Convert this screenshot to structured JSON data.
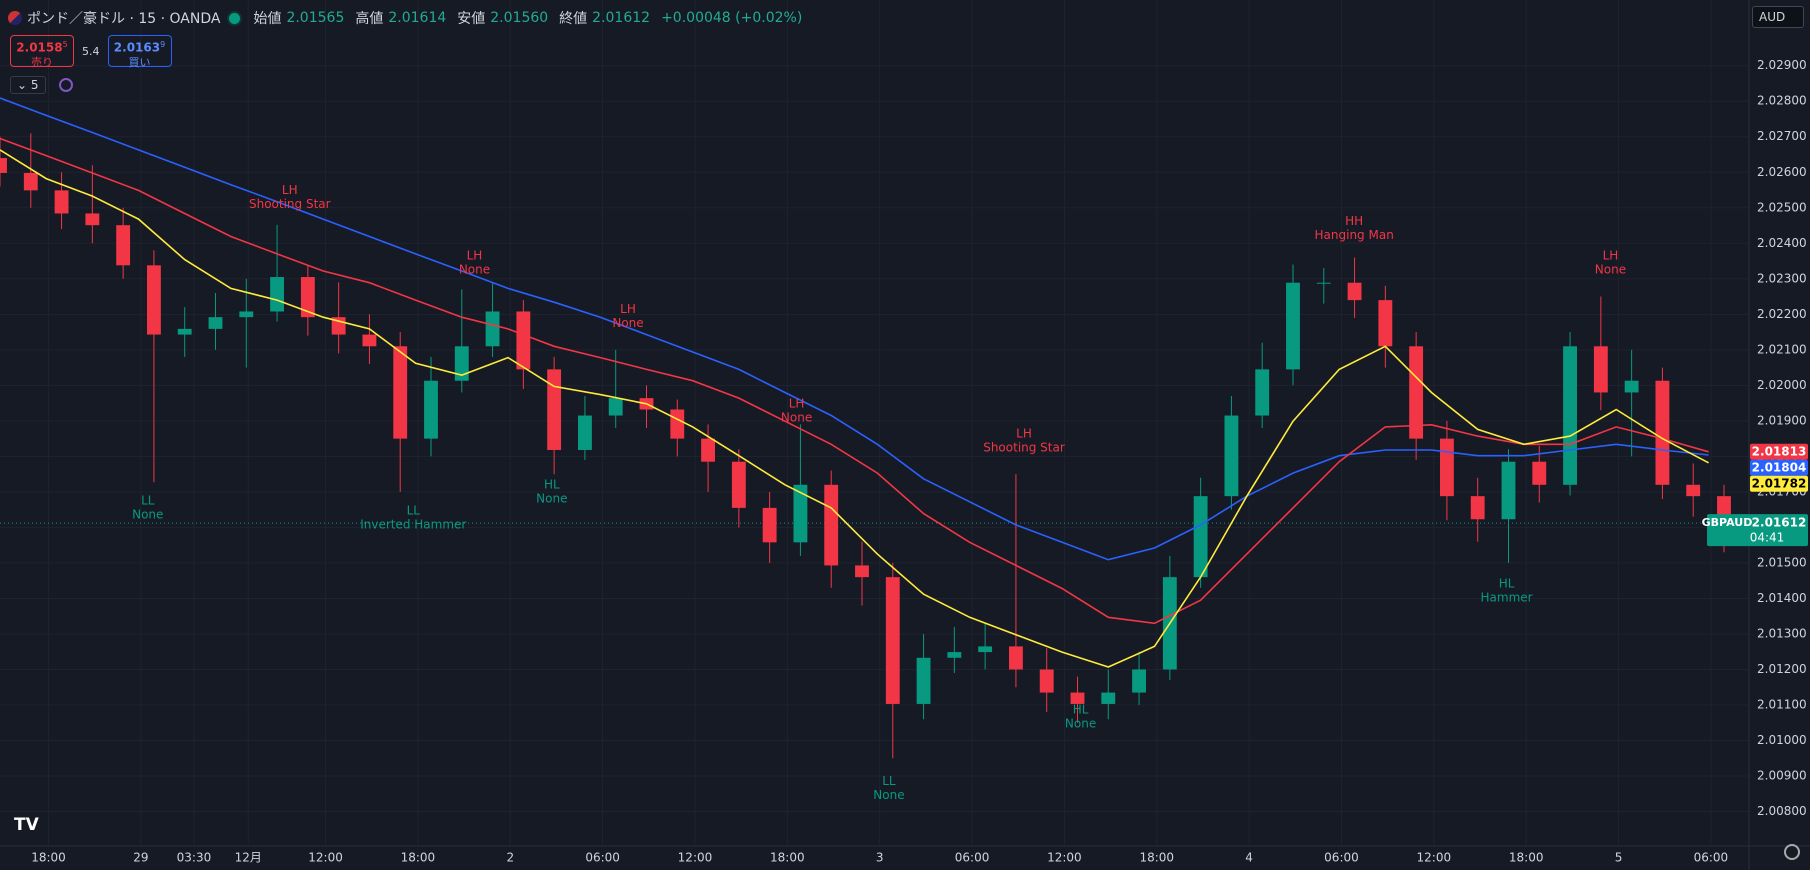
{
  "header": {
    "symbol": "ポンド／豪ドル · 15 · OANDA",
    "open_label": "始値",
    "open": "2.01565",
    "high_label": "高値",
    "high": "2.01614",
    "low_label": "安値",
    "low": "2.01560",
    "close_label": "終値",
    "close": "2.01612",
    "change": "+0.00048 (+0.02%)"
  },
  "trade": {
    "sell_price": "2.0158",
    "sell_sup": "5",
    "sell_label": "売り",
    "spread": "5.4",
    "buy_price": "2.0163",
    "buy_sup": "9",
    "buy_label": "買い"
  },
  "indicator_count": "5",
  "currency": "AUD",
  "chart_data": {
    "type": "candlestick",
    "up_color": "#089981",
    "down_color": "#f23645",
    "x": [
      0,
      8,
      16,
      24,
      32,
      40,
      48,
      56,
      64,
      72,
      80,
      88,
      96,
      104,
      112,
      120,
      128,
      136,
      144,
      152,
      160,
      168,
      176,
      184,
      192,
      200,
      208,
      216,
      224,
      232,
      240,
      248,
      256,
      264,
      272,
      280,
      288,
      296,
      304,
      312,
      320,
      328,
      336,
      344,
      352,
      360,
      368,
      376,
      384,
      392,
      400,
      408,
      416,
      424,
      432,
      440,
      448
    ],
    "open": [
      2.0264,
      2.02598,
      2.02549,
      2.02484,
      2.02451,
      2.02338,
      2.02143,
      2.02159,
      2.02192,
      2.02208,
      2.02305,
      2.02192,
      2.02143,
      2.0211,
      2.0185,
      2.02013,
      2.0211,
      2.02208,
      2.02045,
      2.01818,
      2.01915,
      2.01964,
      2.01932,
      2.0185,
      2.01785,
      2.01655,
      2.01558,
      2.0172,
      2.01493,
      2.0146,
      2.01103,
      2.01233,
      2.01249,
      2.01265,
      2.012,
      2.01135,
      2.01103,
      2.01135,
      2.012,
      2.0146,
      2.01688,
      2.01915,
      2.02045,
      2.02289,
      2.02289,
      2.0224,
      2.0211,
      2.0185,
      2.01688,
      2.01623,
      2.01785,
      2.0172,
      2.0211,
      2.0198,
      2.02013,
      2.0172,
      2.01688
    ],
    "high": [
      2.027,
      2.0271,
      2.026,
      2.0262,
      2.025,
      2.0238,
      2.0222,
      2.0226,
      2.023,
      2.02452,
      2.0234,
      2.0229,
      2.022,
      2.0215,
      2.0208,
      2.0227,
      2.0229,
      2.0224,
      2.0208,
      2.0197,
      2.021,
      2.02,
      2.0196,
      2.0189,
      2.0182,
      2.017,
      2.0189,
      2.0176,
      2.0156,
      2.015,
      2.013,
      2.0132,
      2.0133,
      2.0175,
      2.0126,
      2.0118,
      2.012,
      2.0125,
      2.0152,
      2.0174,
      2.0197,
      2.0212,
      2.0234,
      2.0233,
      2.0236,
      2.0228,
      2.0215,
      2.019,
      2.0174,
      2.0182,
      2.0183,
      2.0215,
      2.0225,
      2.021,
      2.0205,
      2.0178,
      2.0172
    ],
    "low": [
      2.0256,
      2.025,
      2.0244,
      2.024,
      2.023,
      2.01727,
      2.0208,
      2.021,
      2.0205,
      2.0218,
      2.0214,
      2.0209,
      2.0206,
      2.017,
      2.018,
      2.0198,
      2.0208,
      2.0199,
      2.0175,
      2.0179,
      2.0188,
      2.0188,
      2.018,
      2.017,
      2.016,
      2.015,
      2.0152,
      2.0143,
      2.0138,
      2.0095,
      2.0106,
      2.0119,
      2.012,
      2.0115,
      2.0108,
      2.0105,
      2.0106,
      2.011,
      2.0117,
      2.0143,
      2.0165,
      2.0188,
      2.02,
      2.0223,
      2.0219,
      2.0205,
      2.0179,
      2.0162,
      2.0156,
      2.015,
      2.0167,
      2.0169,
      2.0193,
      2.018,
      2.0168,
      2.0163,
      2.0153
    ],
    "close": [
      2.02598,
      2.02549,
      2.02484,
      2.02451,
      2.02338,
      2.02143,
      2.02159,
      2.02192,
      2.02208,
      2.02305,
      2.02192,
      2.02143,
      2.0211,
      2.0185,
      2.02013,
      2.0211,
      2.02208,
      2.02045,
      2.01818,
      2.01915,
      2.01964,
      2.01932,
      2.0185,
      2.01785,
      2.01655,
      2.01558,
      2.0172,
      2.01493,
      2.0146,
      2.01103,
      2.01233,
      2.01249,
      2.01265,
      2.012,
      2.01135,
      2.01103,
      2.01135,
      2.012,
      2.0146,
      2.01688,
      2.01915,
      2.02045,
      2.02289,
      2.02289,
      2.0224,
      2.0211,
      2.0185,
      2.01688,
      2.01623,
      2.01785,
      2.0172,
      2.0211,
      2.0198,
      2.02013,
      2.0172,
      2.01688,
      2.01612
    ],
    "line_x": [
      0,
      12,
      24,
      36,
      48,
      60,
      72,
      84,
      96,
      108,
      120,
      132,
      144,
      156,
      168,
      180,
      192,
      204,
      216,
      228,
      240,
      252,
      264,
      276,
      288,
      300,
      312,
      324,
      336,
      348,
      360,
      372,
      384,
      396,
      408,
      420,
      432,
      444
    ],
    "lines": [
      {
        "color": "#2962ff",
        "values": [
          2.02809,
          2.0276,
          2.02712,
          2.02663,
          2.02614,
          2.02565,
          2.02517,
          2.02468,
          2.02419,
          2.0237,
          2.02322,
          2.02273,
          2.02234,
          2.02192,
          2.02143,
          2.02094,
          2.02045,
          2.0198,
          2.01915,
          2.01834,
          2.01737,
          2.01672,
          2.01607,
          2.01558,
          2.01509,
          2.01542,
          2.01607,
          2.01688,
          2.01753,
          2.01802,
          2.01818,
          2.01818,
          2.01802,
          2.01802,
          2.01818,
          2.01834,
          2.01818,
          2.01804
        ]
      },
      {
        "color": "#f23645",
        "values": [
          2.02695,
          2.02647,
          2.02598,
          2.02549,
          2.02484,
          2.02419,
          2.0237,
          2.02322,
          2.02289,
          2.0224,
          2.02192,
          2.02159,
          2.0211,
          2.02078,
          2.02045,
          2.02013,
          2.01964,
          2.01899,
          2.01834,
          2.01753,
          2.01639,
          2.01558,
          2.01493,
          2.01428,
          2.01347,
          2.0133,
          2.01395,
          2.01525,
          2.01655,
          2.01785,
          2.01883,
          2.01889,
          2.01857,
          2.01834,
          2.01834,
          2.01883,
          2.0185,
          2.01813
        ]
      },
      {
        "color": "#ffeb3b",
        "values": [
          2.02663,
          2.02582,
          2.02533,
          2.02468,
          2.02354,
          2.02273,
          2.0224,
          2.02192,
          2.02159,
          2.02062,
          2.02029,
          2.02078,
          2.01997,
          2.01974,
          2.01948,
          2.01883,
          2.01802,
          2.0172,
          2.01655,
          2.01525,
          2.01412,
          2.01347,
          2.01298,
          2.01249,
          2.01207,
          2.01265,
          2.0146,
          2.01688,
          2.01899,
          2.02045,
          2.0211,
          2.0198,
          2.01876,
          2.01834,
          2.01857,
          2.01932,
          2.0185,
          2.01782
        ]
      }
    ],
    "xlim": [
      0,
      454.5
    ],
    "ylim": [
      2.00703,
      2.03085
    ],
    "grid": true,
    "xticks": [
      {
        "value": 12.6,
        "label": "18:00"
      },
      {
        "value": 36.6,
        "label": "29"
      },
      {
        "value": 50.4,
        "label": "03:30"
      },
      {
        "value": 64.5,
        "label": "12月"
      },
      {
        "value": 84.6,
        "label": "12:00"
      },
      {
        "value": 108.6,
        "label": "18:00"
      },
      {
        "value": 132.6,
        "label": "2"
      },
      {
        "value": 156.6,
        "label": "06:00"
      },
      {
        "value": 180.6,
        "label": "12:00"
      },
      {
        "value": 204.6,
        "label": "18:00"
      },
      {
        "value": 228.6,
        "label": "3"
      },
      {
        "value": 252.6,
        "label": "06:00"
      },
      {
        "value": 276.6,
        "label": "12:00"
      },
      {
        "value": 300.6,
        "label": "18:00"
      },
      {
        "value": 324.6,
        "label": "4"
      },
      {
        "value": 348.6,
        "label": "06:00"
      },
      {
        "value": 372.6,
        "label": "12:00"
      },
      {
        "value": 396.6,
        "label": "18:00"
      },
      {
        "value": 420.6,
        "label": "5"
      },
      {
        "value": 444.6,
        "label": "06:00"
      }
    ],
    "yticks": [
      {
        "value": 2.008,
        "label": "2.00800"
      },
      {
        "value": 2.009,
        "label": "2.00900"
      },
      {
        "value": 2.01,
        "label": "2.01000"
      },
      {
        "value": 2.011,
        "label": "2.01100"
      },
      {
        "value": 2.012,
        "label": "2.01200"
      },
      {
        "value": 2.013,
        "label": "2.01300"
      },
      {
        "value": 2.014,
        "label": "2.01400"
      },
      {
        "value": 2.015,
        "label": "2.01500"
      },
      {
        "value": 2.016,
        "label": "2.01600"
      },
      {
        "value": 2.017,
        "label": "2.01700"
      },
      {
        "value": 2.018,
        "label": "2.01800"
      },
      {
        "value": 2.019,
        "label": "2.01900"
      },
      {
        "value": 2.02,
        "label": "2.02000"
      },
      {
        "value": 2.021,
        "label": "2.02100"
      },
      {
        "value": 2.022,
        "label": "2.02200"
      },
      {
        "value": 2.023,
        "label": "2.02300"
      },
      {
        "value": 2.024,
        "label": "2.02400"
      },
      {
        "value": 2.025,
        "label": "2.02500"
      },
      {
        "value": 2.026,
        "label": "2.02600"
      },
      {
        "value": 2.027,
        "label": "2.02700"
      },
      {
        "value": 2.028,
        "label": "2.02800"
      },
      {
        "value": 2.029,
        "label": "2.02900"
      }
    ],
    "price_tags": [
      {
        "value": 2.01813,
        "color": "#f23645"
      },
      {
        "value": 2.01804,
        "color": "#2962ff"
      },
      {
        "value": 2.01782,
        "color": "#ffeb3b"
      }
    ],
    "last": {
      "symbol": "GBPAUD",
      "value": 2.01612,
      "countdown": "04:41",
      "color": "#089981"
    },
    "annotations": [
      {
        "x": 75.3,
        "y": 2.02549,
        "labels": [
          "LH",
          "Shooting Star"
        ],
        "color": "#f23645"
      },
      {
        "x": 38.4,
        "y": 2.01675,
        "labels": [
          "LL",
          "None"
        ],
        "color": "#089981"
      },
      {
        "x": 123.3,
        "y": 2.02364,
        "labels": [
          "LH",
          "None"
        ],
        "color": "#f23645"
      },
      {
        "x": 107.4,
        "y": 2.01646,
        "labels": [
          "LL",
          "Inverted Hammer"
        ],
        "color": "#089981"
      },
      {
        "x": 163.2,
        "y": 2.02214,
        "labels": [
          "LH",
          "None"
        ],
        "color": "#f23645"
      },
      {
        "x": 143.4,
        "y": 2.0172,
        "labels": [
          "HL",
          "None"
        ],
        "color": "#089981"
      },
      {
        "x": 207,
        "y": 2.01948,
        "labels": [
          "LH",
          "None"
        ],
        "color": "#f23645"
      },
      {
        "x": 231,
        "y": 2.00885,
        "labels": [
          "LL",
          "None"
        ],
        "color": "#089981"
      },
      {
        "x": 266.1,
        "y": 2.01863,
        "labels": [
          "LH",
          "Shooting Star"
        ],
        "color": "#f23645"
      },
      {
        "x": 280.8,
        "y": 2.01086,
        "labels": [
          "HL",
          "None"
        ],
        "color": "#089981"
      },
      {
        "x": 351.9,
        "y": 2.02461,
        "labels": [
          "HH",
          "Hanging Man"
        ],
        "color": "#f23645"
      },
      {
        "x": 391.5,
        "y": 2.01441,
        "labels": [
          "HL",
          "Hammer"
        ],
        "color": "#089981"
      },
      {
        "x": 418.5,
        "y": 2.02364,
        "labels": [
          "LH",
          "None"
        ],
        "color": "#f23645"
      }
    ]
  }
}
